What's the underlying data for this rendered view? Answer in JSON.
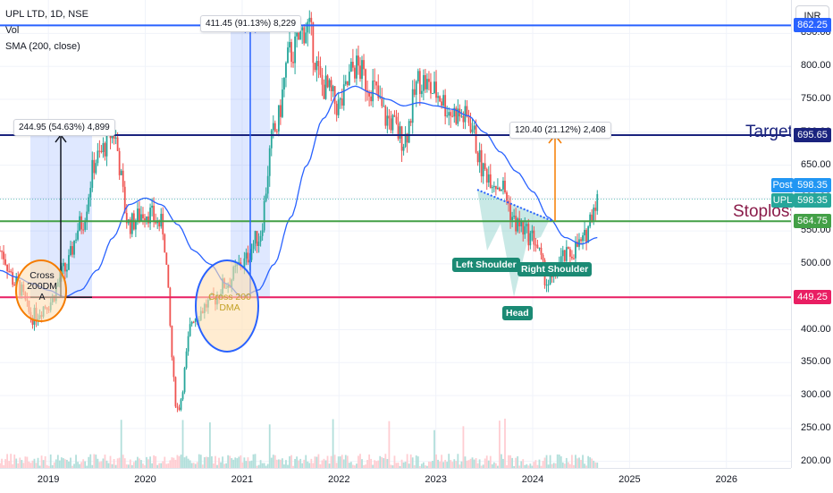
{
  "header": {
    "symbol_line": "UPL LTD, 1D, NSE",
    "vol_label": "Vol",
    "sma_label": "SMA (200, close)"
  },
  "currency_label": "INR",
  "price_axis_ticks": [
    "850.00",
    "800.00",
    "750.00",
    "700.00",
    "650.00",
    "600.00",
    "550.00",
    "500.00",
    "450.00",
    "400.00",
    "350.00",
    "300.00",
    "250.00",
    "200.00"
  ],
  "time_axis_ticks": [
    "2019",
    "2020",
    "2021",
    "2022",
    "2023",
    "2024",
    "2025",
    "2026"
  ],
  "levels": {
    "high": {
      "value": "862.25",
      "color": "#2962ff"
    },
    "target": {
      "value": "695.65",
      "color": "#1a237e",
      "label": "Target"
    },
    "stoploss": {
      "value": "564.75",
      "color": "#43a047",
      "label": "Stoploss"
    },
    "support": {
      "value": "449.25",
      "color": "#e91e63"
    }
  },
  "current_price": {
    "post_label": "Post",
    "post_value": "598.35",
    "upl_label": "UPL",
    "upl_value": "598.35"
  },
  "measurements": [
    {
      "text": "411.45 (91.13%) 8,229"
    },
    {
      "text": "244.95 (54.63%) 4,899"
    },
    {
      "text": "120.40 (21.12%) 2,408"
    }
  ],
  "pattern_labels": {
    "left": "Left Shoulder",
    "head": "Head",
    "right": "Right Shoulder"
  },
  "circle_labels": {
    "first": "Cross\n200DM\nA",
    "second": "Cross 200\nDMA"
  },
  "colors": {
    "up": "#26a69a",
    "down": "#ef5350",
    "sma": "#2962ff"
  },
  "chart_data": {
    "type": "line",
    "title": "UPL LTD, 1D, NSE",
    "x": [
      "2018-07",
      "2018-09",
      "2018-11",
      "2019-01",
      "2019-03",
      "2019-05",
      "2019-07",
      "2019-09",
      "2019-11",
      "2020-01",
      "2020-03",
      "2020-05",
      "2020-07",
      "2020-09",
      "2020-11",
      "2021-01",
      "2021-03",
      "2021-05",
      "2021-07",
      "2021-09",
      "2021-11",
      "2022-01",
      "2022-03",
      "2022-05",
      "2022-07",
      "2022-09",
      "2022-11",
      "2023-01",
      "2023-03",
      "2023-05",
      "2023-07",
      "2023-09",
      "2023-11",
      "2024-01",
      "2024-03",
      "2024-05",
      "2024-07",
      "2024-09"
    ],
    "series": [
      {
        "values": [
          520,
          470,
          420,
          440,
          490,
          560,
          660,
          700,
          560,
          580,
          560,
          280,
          420,
          440,
          470,
          500,
          540,
          700,
          820,
          860,
          770,
          740,
          800,
          770,
          720,
          690,
          780,
          760,
          730,
          720,
          640,
          620,
          560,
          540,
          470,
          510,
          530,
          598
        ]
      },
      {
        "values": [
          490,
          480,
          470,
          460,
          450,
          460,
          490,
          540,
          590,
          600,
          590,
          560,
          520,
          500,
          470,
          450,
          460,
          500,
          570,
          650,
          720,
          760,
          770,
          760,
          750,
          740,
          745,
          740,
          735,
          725,
          700,
          670,
          640,
          610,
          570,
          540,
          530,
          540
        ]
      }
    ],
    "ylim": [
      190,
      890
    ],
    "xlim": [
      "2018-07",
      "2026-09"
    ]
  }
}
